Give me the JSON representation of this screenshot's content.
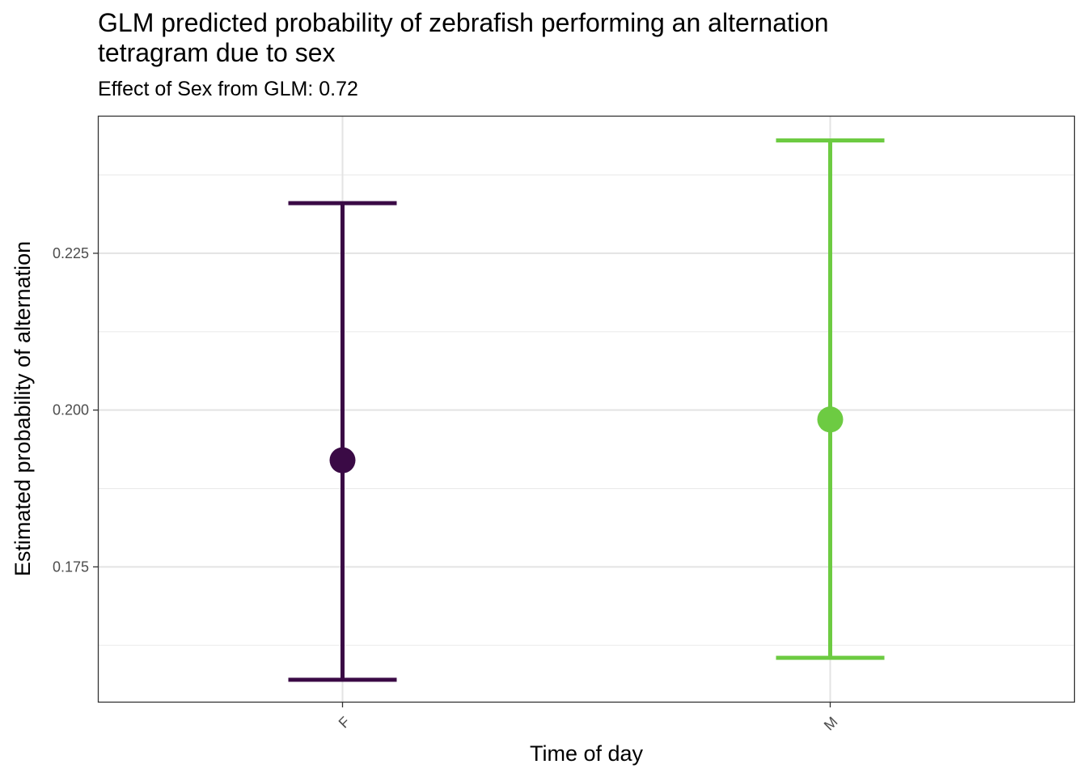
{
  "title": "GLM predicted probability of zebrafish performing an alternation\ntetragram due to sex",
  "subtitle": "Effect of Sex from GLM: 0.72",
  "chart_data": {
    "type": "errorbar-point",
    "title": "GLM predicted probability of zebrafish performing an alternation tetragram due to sex",
    "subtitle": "Effect of Sex from GLM: 0.72",
    "xlabel": "Time of day",
    "ylabel": "Estimated probability of alternation",
    "categories": [
      "F",
      "M"
    ],
    "points": [
      {
        "category": "F",
        "estimate": 0.192,
        "lower": 0.157,
        "upper": 0.233,
        "color": "#3a0a45"
      },
      {
        "category": "M",
        "estimate": 0.1985,
        "lower": 0.1605,
        "upper": 0.243,
        "color": "#6dcb42"
      }
    ],
    "yticks": [
      0.175,
      0.2,
      0.225
    ],
    "ytick_labels": [
      "0.175",
      "0.200",
      "0.225"
    ],
    "ylim": [
      0.1535,
      0.2468
    ],
    "grid": true
  }
}
